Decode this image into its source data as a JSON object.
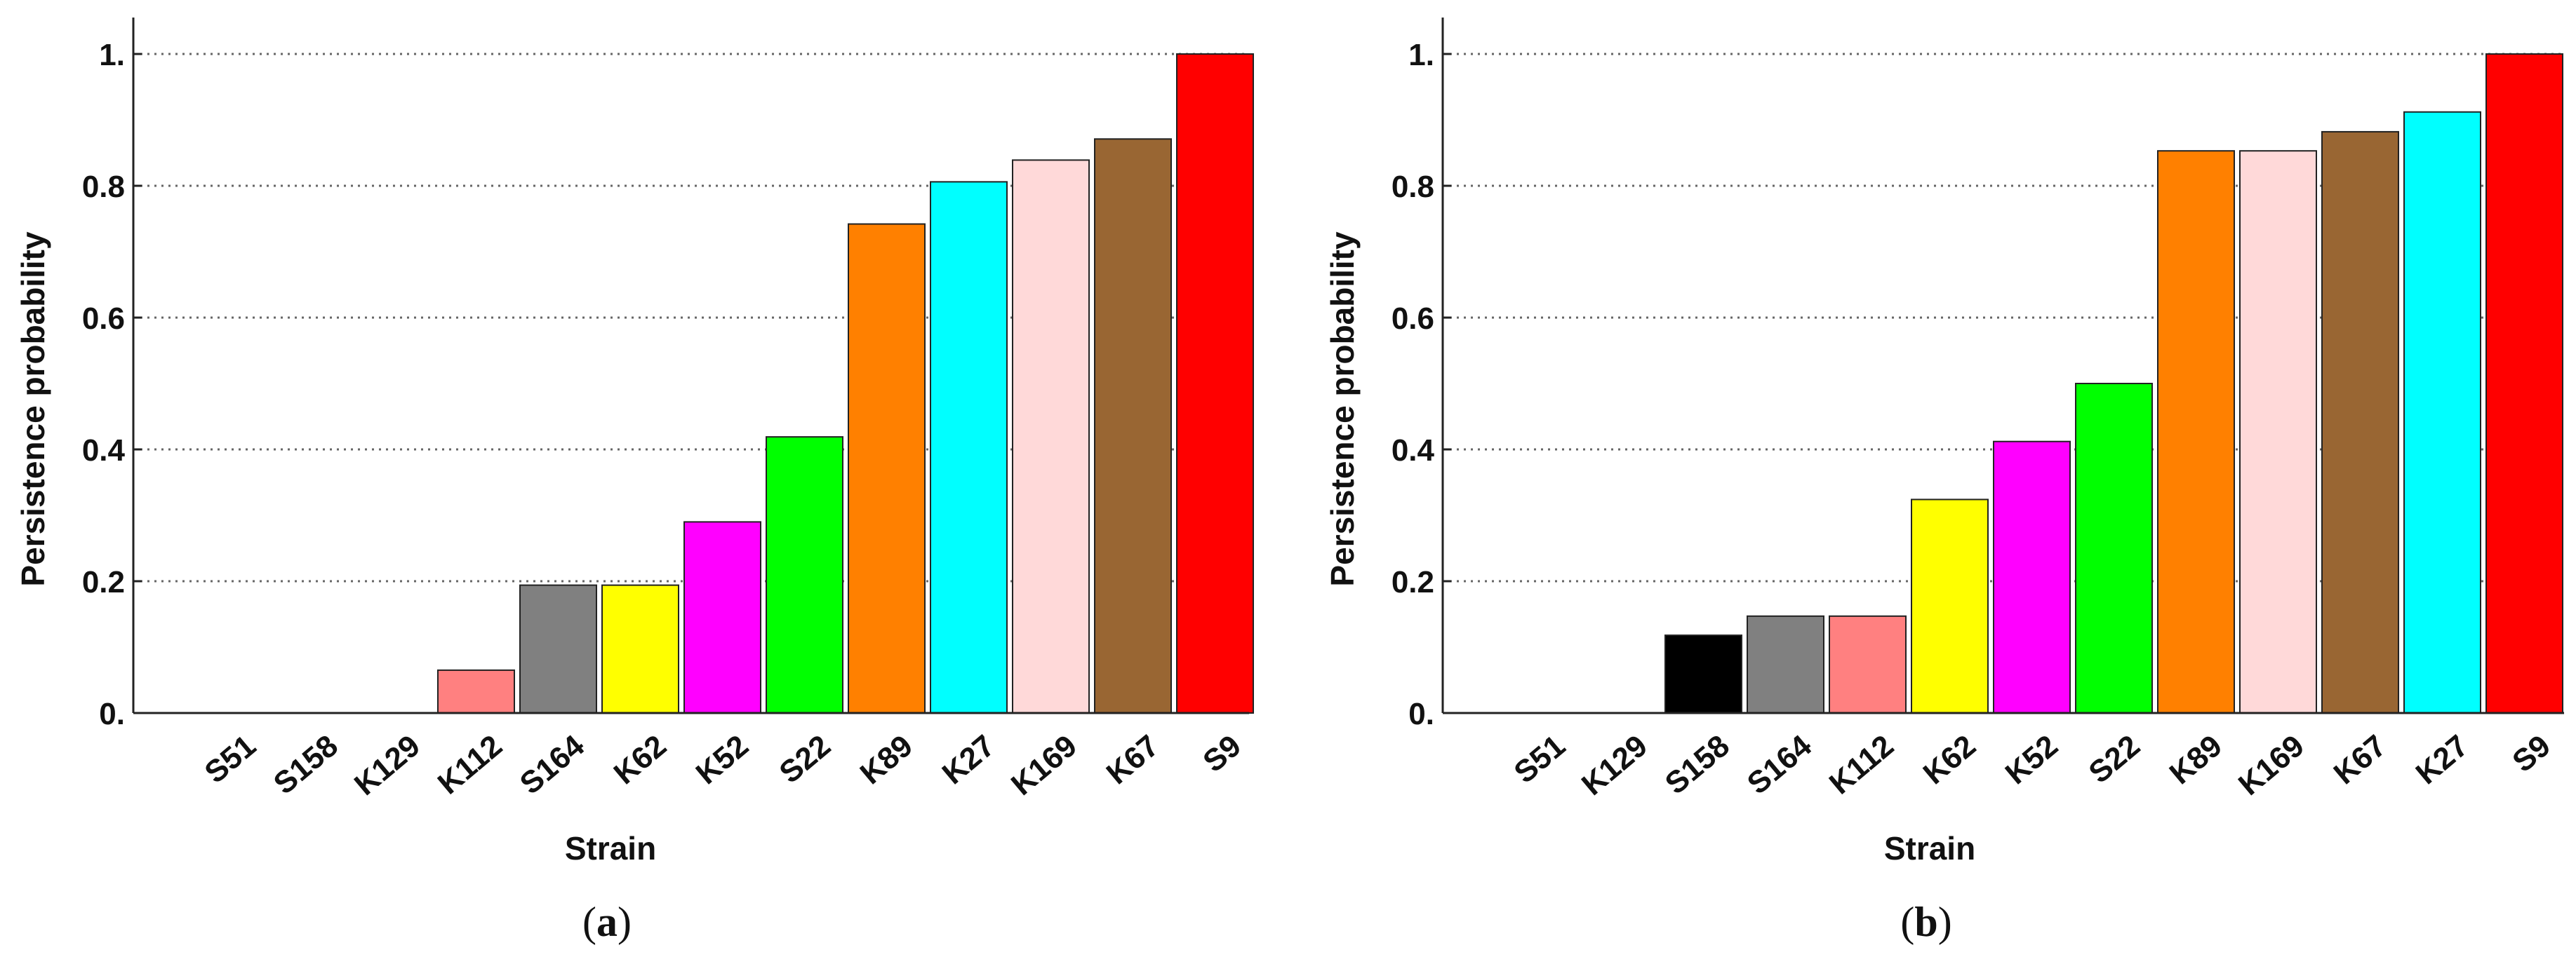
{
  "chart_data": [
    {
      "type": "bar",
      "panel_label": "(a)",
      "panel_label_parts": {
        "open": "(",
        "letter": "a",
        "close": ")"
      },
      "xlabel": "Strain",
      "ylabel": "Persistence probability",
      "ylim": [
        0,
        1.05
      ],
      "yticks": [
        0,
        0.2,
        0.4,
        0.6,
        0.8,
        1
      ],
      "ytick_labels": [
        "0.",
        "0.2",
        "0.4",
        "0.6",
        "0.8",
        "1."
      ],
      "grid": "horizontal dotted",
      "categories": [
        "S51",
        "S158",
        "K129",
        "K112",
        "S164",
        "K62",
        "K52",
        "S22",
        "K89",
        "K27",
        "K169",
        "K67",
        "S9"
      ],
      "values": [
        0,
        0,
        0,
        0.065,
        0.194,
        0.194,
        0.29,
        0.419,
        0.742,
        0.806,
        0.839,
        0.871,
        1.0
      ],
      "colors": [
        "#ffffff",
        "#ffffff",
        "#ffffff",
        "#ff8080",
        "#808080",
        "#ffff00",
        "#ff00ff",
        "#00ff00",
        "#ff8000",
        "#00ffff",
        "#ffd9d9",
        "#996633",
        "#ff0000"
      ]
    },
    {
      "type": "bar",
      "panel_label": "(b)",
      "panel_label_parts": {
        "open": "(",
        "letter": "b",
        "close": ")"
      },
      "xlabel": "Strain",
      "ylabel": "Persistence probability",
      "ylim": [
        0,
        1.05
      ],
      "yticks": [
        0,
        0.2,
        0.4,
        0.6,
        0.8,
        1
      ],
      "ytick_labels": [
        "0.",
        "0.2",
        "0.4",
        "0.6",
        "0.8",
        "1."
      ],
      "grid": "horizontal dotted",
      "categories": [
        "S51",
        "K129",
        "S158",
        "S164",
        "K112",
        "K62",
        "K52",
        "S22",
        "K89",
        "K169",
        "K67",
        "K27",
        "S9"
      ],
      "values": [
        0,
        0,
        0.118,
        0.147,
        0.147,
        0.324,
        0.412,
        0.5,
        0.853,
        0.853,
        0.882,
        0.912,
        1.0
      ],
      "colors": [
        "#ffffff",
        "#ffffff",
        "#000000",
        "#808080",
        "#ff8080",
        "#ffff00",
        "#ff00ff",
        "#00ff00",
        "#ff8000",
        "#ffd9d9",
        "#996633",
        "#00ffff",
        "#ff0000"
      ]
    }
  ]
}
